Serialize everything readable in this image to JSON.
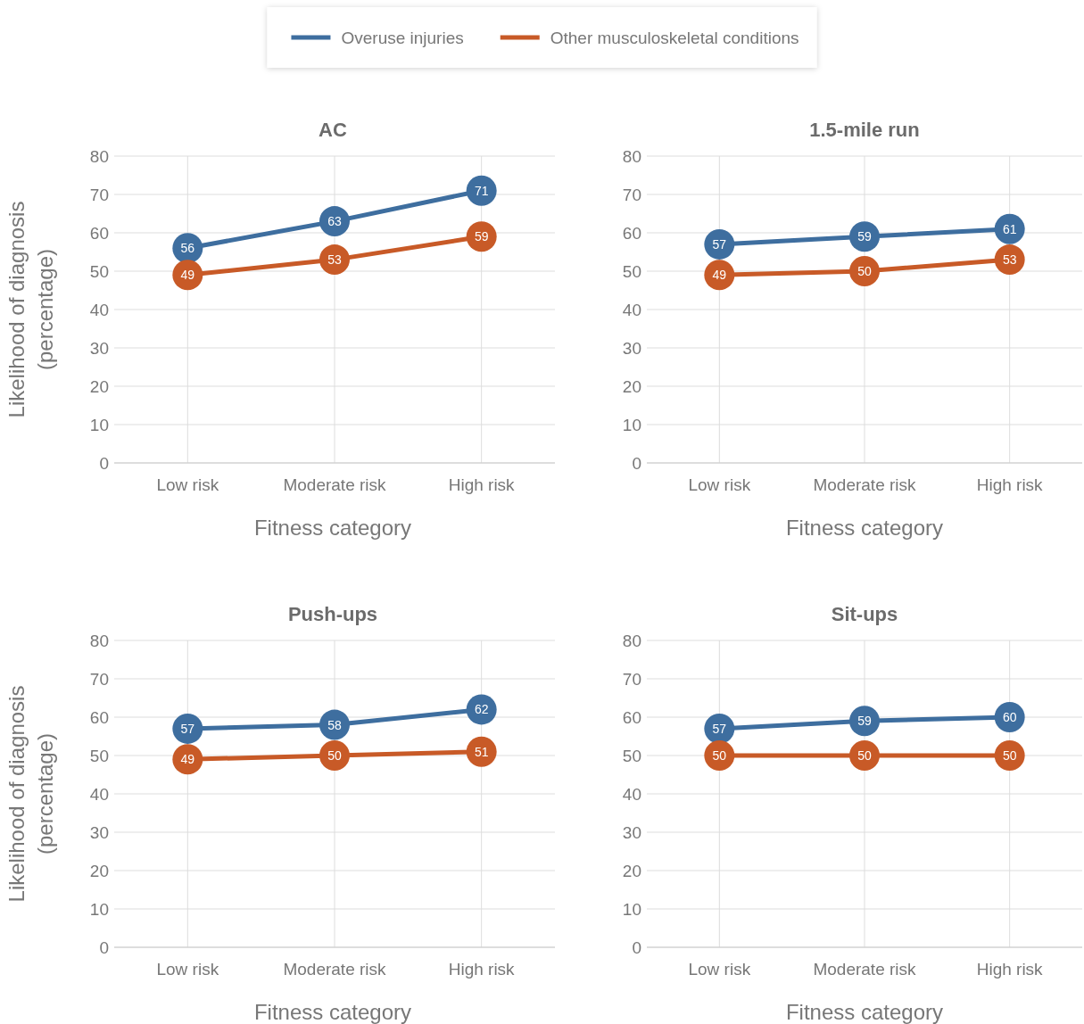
{
  "chart_data": [
    {
      "type": "line",
      "title": "AC",
      "xlabel": "Fitness category",
      "ylabel": "Likelihood of diagnosis\n(percentage)",
      "categories": [
        "Low risk",
        "Moderate risk",
        "High risk"
      ],
      "series": [
        {
          "name": "Overuse injuries",
          "color": "#3e6e9f",
          "values": [
            56,
            63,
            71
          ]
        },
        {
          "name": "Other musculoskeletal conditions",
          "color": "#c85a27",
          "values": [
            49,
            53,
            59
          ]
        }
      ],
      "ylim": [
        0,
        80
      ],
      "yticks": [
        0,
        10,
        20,
        30,
        40,
        50,
        60,
        70,
        80
      ],
      "grid": true,
      "marker": "circle",
      "data_labels": true,
      "legend": "top"
    },
    {
      "type": "line",
      "title": "1.5-mile run",
      "xlabel": "Fitness category",
      "categories": [
        "Low risk",
        "Moderate risk",
        "High risk"
      ],
      "series": [
        {
          "color": "#3e6e9f",
          "values": [
            57,
            59,
            61
          ]
        },
        {
          "color": "#c85a27",
          "values": [
            49,
            50,
            53
          ]
        }
      ],
      "ylim": [
        0,
        80
      ],
      "yticks": [
        0,
        10,
        20,
        30,
        40,
        50,
        60,
        70,
        80
      ],
      "grid": true,
      "marker": "circle",
      "data_labels": true
    },
    {
      "type": "line",
      "title": "Push-ups",
      "xlabel": "Fitness category",
      "ylabel": "Likelihood of diagnosis\n(percentage)",
      "categories": [
        "Low risk",
        "Moderate risk",
        "High risk"
      ],
      "series": [
        {
          "color": "#3e6e9f",
          "values": [
            57,
            58,
            62
          ]
        },
        {
          "color": "#c85a27",
          "values": [
            49,
            50,
            51
          ]
        }
      ],
      "ylim": [
        0,
        80
      ],
      "yticks": [
        0,
        10,
        20,
        30,
        40,
        50,
        60,
        70,
        80
      ],
      "grid": true,
      "marker": "circle",
      "data_labels": true
    },
    {
      "type": "line",
      "title": "Sit-ups",
      "xlabel": "Fitness category",
      "categories": [
        "Low risk",
        "Moderate risk",
        "High risk"
      ],
      "series": [
        {
          "color": "#3e6e9f",
          "values": [
            57,
            59,
            60
          ]
        },
        {
          "color": "#c85a27",
          "values": [
            50,
            50,
            50
          ]
        }
      ],
      "ylim": [
        0,
        80
      ],
      "yticks": [
        0,
        10,
        20,
        30,
        40,
        50,
        60,
        70,
        80
      ],
      "grid": true,
      "marker": "circle",
      "data_labels": true
    }
  ]
}
